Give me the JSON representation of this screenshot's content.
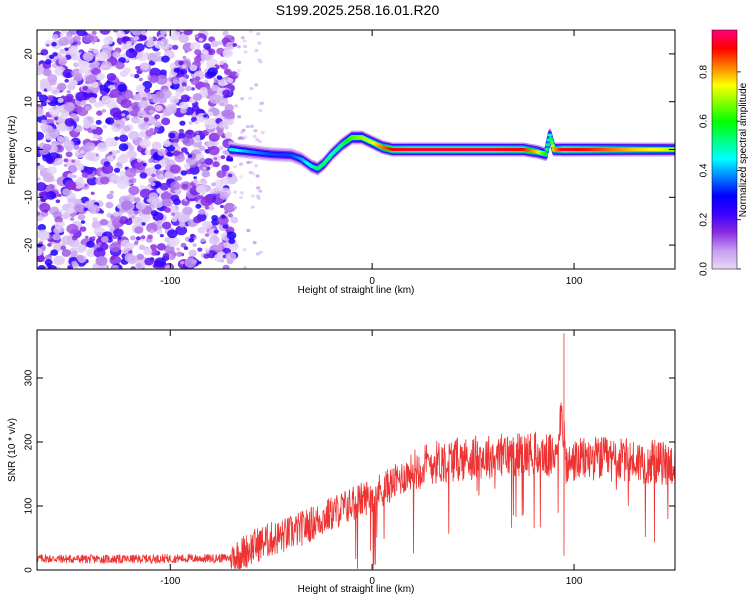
{
  "title": "S199.2025.258.16.01.R20",
  "chart_data": [
    {
      "type": "heatmap",
      "title": "S199.2025.258.16.01.R20",
      "xlabel": "Height of straight line (km)",
      "ylabel": "Frequency (Hz)",
      "xlim": [
        -166,
        150
      ],
      "ylim": [
        -25,
        25
      ],
      "x_ticks": [
        -100,
        0,
        100
      ],
      "y_ticks": [
        -20,
        -10,
        0,
        10,
        20
      ],
      "grid": false,
      "colorbar": {
        "label": "Normalized spectral amplitude",
        "range": [
          0.0,
          0.97
        ],
        "ticks": [
          0.0,
          0.2,
          0.4,
          0.6,
          0.8
        ],
        "colormap": [
          "#e8d8f8",
          "#c59ef0",
          "#8a2be2",
          "#3a00ff",
          "#0000ff",
          "#0080ff",
          "#00ffff",
          "#00ff80",
          "#00ff00",
          "#80ff00",
          "#ffff00",
          "#ff8000",
          "#ff0000",
          "#ff0080"
        ]
      },
      "noise_region": {
        "x_from": -166,
        "x_to": -68,
        "freq_range": [
          -25,
          25
        ],
        "amplitude": "low (0.0-0.25)"
      },
      "ridge": {
        "description": "frequency of strongest signal vs height",
        "x": [
          -70,
          -60,
          -50,
          -40,
          -35,
          -30,
          -27,
          -24,
          -20,
          -15,
          -10,
          -5,
          0,
          5,
          10,
          20,
          40,
          60,
          75,
          82,
          86,
          88,
          90,
          95,
          110,
          130,
          145,
          150
        ],
        "y": [
          0,
          -0.5,
          -1,
          -1.2,
          -2,
          -3.5,
          -4,
          -3,
          -1,
          1,
          2.5,
          2.5,
          1.5,
          0.5,
          0,
          0,
          0,
          0,
          0,
          -0.5,
          -1,
          3,
          0,
          0,
          0,
          0,
          0,
          0
        ],
        "amplitude": [
          0.5,
          0.4,
          0.35,
          0.35,
          0.4,
          0.5,
          0.55,
          0.55,
          0.5,
          0.55,
          0.65,
          0.7,
          0.75,
          0.85,
          0.92,
          0.95,
          0.95,
          0.95,
          0.92,
          0.8,
          0.6,
          0.5,
          0.8,
          0.95,
          0.9,
          0.8,
          0.75,
          0.7
        ]
      }
    },
    {
      "type": "line",
      "xlabel": "Height of straight line (km)",
      "ylabel": "SNR (10 * v/v)",
      "xlim": [
        -166,
        150
      ],
      "ylim": [
        0,
        375
      ],
      "x_ticks": [
        -100,
        0,
        100
      ],
      "y_ticks": [
        0,
        100,
        200,
        300
      ],
      "grid": false,
      "series": [
        {
          "color": "#ee3333",
          "x": [
            -166,
            -140,
            -120,
            -100,
            -80,
            -70,
            -65,
            -60,
            -55,
            -50,
            -45,
            -40,
            -35,
            -30,
            -25,
            -20,
            -15,
            -10,
            -5,
            0,
            5,
            10,
            15,
            20,
            25,
            30,
            40,
            50,
            60,
            70,
            80,
            90,
            94,
            96,
            98,
            100,
            110,
            120,
            130,
            140,
            150
          ],
          "y": [
            18,
            17,
            17,
            18,
            18,
            19,
            25,
            35,
            42,
            48,
            52,
            58,
            65,
            72,
            80,
            88,
            96,
            103,
            110,
            118,
            126,
            135,
            145,
            155,
            162,
            168,
            172,
            175,
            178,
            180,
            182,
            176,
            250,
            160,
            165,
            170,
            175,
            172,
            170,
            168,
            165
          ]
        }
      ],
      "spikes": [
        {
          "x": 95,
          "y": 370
        },
        {
          "x": 95,
          "y": 22
        }
      ]
    }
  ]
}
